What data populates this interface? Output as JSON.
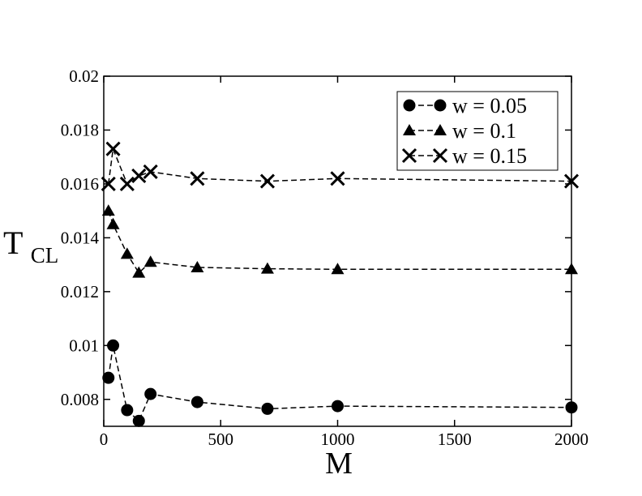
{
  "chart_data": {
    "type": "line",
    "xlabel": "M",
    "ylabel_main": "T",
    "ylabel_sub": "CL",
    "xlim": [
      0,
      2000
    ],
    "ylim": [
      0.007,
      0.02
    ],
    "x_ticks": [
      0,
      500,
      1000,
      1500,
      2000
    ],
    "x_tick_labels": [
      "0",
      "500",
      "1000",
      "1500",
      "2000"
    ],
    "y_ticks": [
      0.008,
      0.01,
      0.012,
      0.014,
      0.016,
      0.018,
      0.02
    ],
    "y_tick_labels": [
      "0.008",
      "0.01",
      "0.012",
      "0.014",
      "0.016",
      "0.018",
      "0.02"
    ],
    "grid": false,
    "legend_position": "top-right",
    "line_style": "dashed",
    "series": [
      {
        "name": "w = 0.05",
        "marker": "circle",
        "x": [
          20,
          40,
          100,
          150,
          200,
          400,
          700,
          1000,
          2000
        ],
        "y": [
          0.0088,
          0.01,
          0.0076,
          0.0072,
          0.0082,
          0.0079,
          0.00765,
          0.00775,
          0.0077
        ]
      },
      {
        "name": "w = 0.1",
        "marker": "triangle",
        "x": [
          20,
          40,
          100,
          150,
          200,
          400,
          700,
          1000,
          2000
        ],
        "y": [
          0.015,
          0.0145,
          0.0134,
          0.0127,
          0.0131,
          0.0129,
          0.01285,
          0.01283,
          0.01283
        ]
      },
      {
        "name": "w = 0.15",
        "marker": "x",
        "x": [
          20,
          40,
          100,
          150,
          200,
          400,
          700,
          1000,
          2000
        ],
        "y": [
          0.016,
          0.0173,
          0.016,
          0.0163,
          0.01645,
          0.0162,
          0.0161,
          0.0162,
          0.0161
        ]
      }
    ]
  }
}
